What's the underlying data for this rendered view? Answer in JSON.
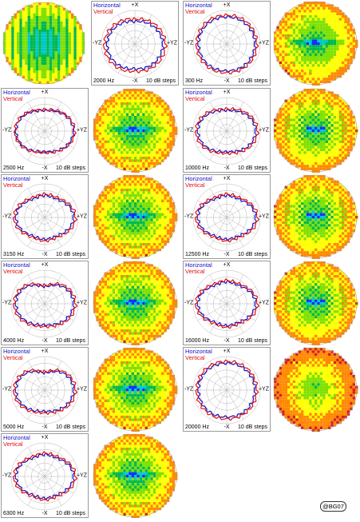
{
  "legend": {
    "horizontal": "Horizontal",
    "vertical": "Vertical"
  },
  "axes": {
    "top": "+X",
    "bottom": "-X",
    "left": "-YZ",
    "right": "+YZ"
  },
  "steps_label": "10 dB steps",
  "badge": "@BG07",
  "colors": {
    "horizontal": "#1010c8",
    "vertical": "#e01010",
    "grid": "#b4b4b4"
  },
  "chart_data": [
    {
      "type": "polar",
      "label": "2000 Hz",
      "series": [
        {
          "name": "Horizontal",
          "shape": "cone",
          "rdb": 30
        },
        {
          "name": "Vertical",
          "shape": "cone",
          "rdb": 33
        }
      ]
    },
    {
      "type": "polar",
      "label": "300 Hz",
      "series": [
        {
          "name": "Horizontal",
          "shape": "round",
          "rdb": 31
        },
        {
          "name": "Vertical",
          "shape": "round",
          "rdb": 33
        }
      ]
    },
    {
      "type": "polar",
      "label": "2500 Hz",
      "series": [
        {
          "name": "Horizontal",
          "shape": "pill",
          "rdb": 31
        },
        {
          "name": "Vertical",
          "shape": "pill",
          "rdb": 32
        }
      ]
    },
    {
      "type": "polar",
      "label": "10000 Hz",
      "series": [
        {
          "name": "Horizontal",
          "shape": "pill",
          "rdb": 31
        },
        {
          "name": "Vertical",
          "shape": "pill",
          "rdb": 33
        }
      ]
    },
    {
      "type": "polar",
      "label": "3150 Hz",
      "series": [
        {
          "name": "Horizontal",
          "shape": "peanut",
          "rdb": 31
        },
        {
          "name": "Vertical",
          "shape": "peanut",
          "rdb": 33
        }
      ]
    },
    {
      "type": "polar",
      "label": "12500 Hz",
      "series": [
        {
          "name": "Horizontal",
          "shape": "peanut",
          "rdb": 31
        },
        {
          "name": "Vertical",
          "shape": "peanut",
          "rdb": 33
        }
      ]
    },
    {
      "type": "polar",
      "label": "4000 Hz",
      "series": [
        {
          "name": "Horizontal",
          "shape": "heart",
          "rdb": 31
        },
        {
          "name": "Vertical",
          "shape": "heart",
          "rdb": 33
        }
      ]
    },
    {
      "type": "polar",
      "label": "16000 Hz",
      "series": [
        {
          "name": "Horizontal",
          "shape": "peanut",
          "rdb": 31
        },
        {
          "name": "Vertical",
          "shape": "peanut",
          "rdb": 33
        }
      ]
    },
    {
      "type": "polar",
      "label": "5000 Hz",
      "series": [
        {
          "name": "Horizontal",
          "shape": "heart",
          "rdb": 31
        },
        {
          "name": "Vertical",
          "shape": "heart",
          "rdb": 33
        }
      ]
    },
    {
      "type": "polar",
      "label": "20000 Hz",
      "series": [
        {
          "name": "Horizontal",
          "shape": "round",
          "rdb": 31
        },
        {
          "name": "Vertical",
          "shape": "round",
          "rdb": 33
        }
      ]
    },
    {
      "type": "polar",
      "label": "6300 Hz",
      "series": [
        {
          "name": "Horizontal",
          "shape": "peanut",
          "rdb": 31
        },
        {
          "name": "Vertical",
          "shape": "peanut",
          "rdb": 33
        }
      ]
    }
  ],
  "balloons": [
    {
      "id": "b-top-left",
      "pattern": "stripes"
    },
    {
      "id": "b-300",
      "pattern": "center"
    },
    {
      "id": "b-2500",
      "pattern": "center"
    },
    {
      "id": "b-10000",
      "pattern": "grid"
    },
    {
      "id": "b-3150",
      "pattern": "center"
    },
    {
      "id": "b-12500",
      "pattern": "grid"
    },
    {
      "id": "b-4000",
      "pattern": "center"
    },
    {
      "id": "b-16000",
      "pattern": "grid"
    },
    {
      "id": "b-5000",
      "pattern": "center"
    },
    {
      "id": "b-20000",
      "pattern": "warm"
    },
    {
      "id": "b-6300",
      "pattern": "center"
    }
  ]
}
